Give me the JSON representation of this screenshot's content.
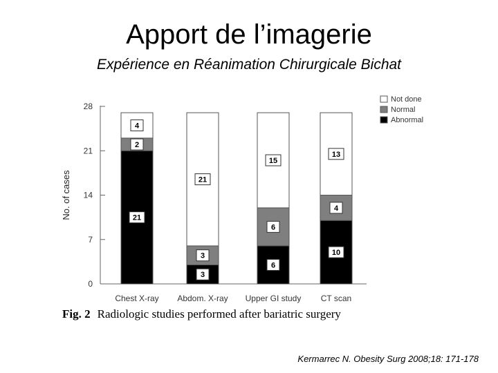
{
  "slide": {
    "title": "Apport de l’imagerie",
    "subtitle": "Expérience en Réanimation Chirurgicale Bichat",
    "caption_label": "Fig. 2",
    "caption_text": "Radiologic studies performed after bariatric surgery",
    "citation": "Kermarrec N. Obesity Surg 2008;18: 171-178"
  },
  "chart_data": {
    "type": "bar",
    "stacked": true,
    "categories": [
      "Chest X-ray",
      "Abdom. X-ray",
      "Upper GI study",
      "CT scan"
    ],
    "series": [
      {
        "name": "Abnormal",
        "values": [
          21,
          3,
          6,
          10
        ],
        "color": "#000000",
        "label_box": true
      },
      {
        "name": "Normal",
        "values": [
          2,
          3,
          6,
          4
        ],
        "color": "#7f7f7f",
        "label_box": true
      },
      {
        "name": "Not done",
        "values": [
          4,
          21,
          15,
          13
        ],
        "color": "#ffffff",
        "label_box": true
      }
    ],
    "ylabel": "No. of cases",
    "xlabel": "",
    "ylim": [
      0,
      28
    ],
    "yticks": [
      0,
      7,
      14,
      21,
      28
    ],
    "legend_position": "top-right",
    "grid": false
  }
}
